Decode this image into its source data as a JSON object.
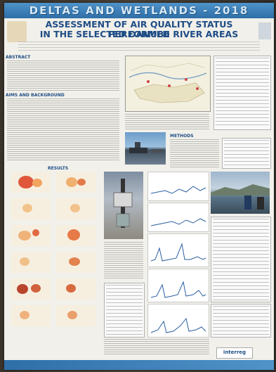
{
  "poster": {
    "banner": "DELTAS AND WETLANDS - 2018",
    "title_line1": "ASSESSMENT OF AIR QUALITY STATUS PERFORMED",
    "title_line2": "IN THE SELECTED DANUBE RIVER AREAS",
    "section_abstract": "ABSTRACT",
    "section_aims": "AIMS AND BACKGROUND",
    "section_results": "RESULTS",
    "section_method": "METHODS",
    "logo_interreg": "interreg"
  },
  "colors": {
    "banner": "#2f6fa8",
    "title": "#1f4d86",
    "background": "#f1f0ea"
  }
}
